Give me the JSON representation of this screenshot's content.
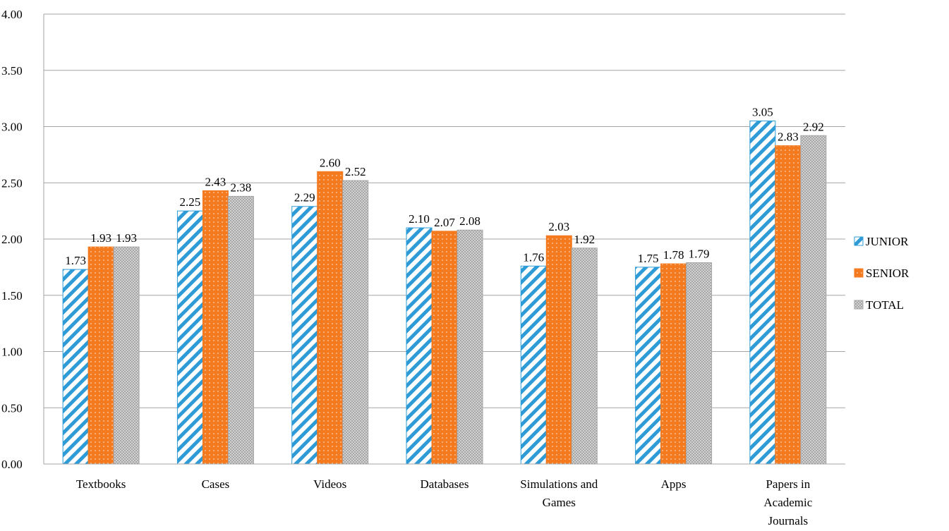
{
  "chart_data": {
    "type": "bar",
    "title": "",
    "xlabel": "",
    "ylabel": "",
    "ylim": [
      0,
      4
    ],
    "y_ticks": [
      "0.00",
      "0.50",
      "1.00",
      "1.50",
      "2.00",
      "2.50",
      "3.00",
      "3.50",
      "4.00"
    ],
    "grid": "horizontal",
    "legend_position": "right",
    "categories": [
      [
        "Textbooks"
      ],
      [
        "Cases"
      ],
      [
        "Videos"
      ],
      [
        "Databases"
      ],
      [
        "Simulations and",
        "Games"
      ],
      [
        "Apps"
      ],
      [
        "Papers in",
        "Academic",
        "Journals"
      ]
    ],
    "series": [
      {
        "name": "JUNIOR",
        "color": "#2E9BD6",
        "pattern": "diagonal-stripes",
        "values": [
          1.73,
          2.25,
          2.29,
          2.1,
          1.76,
          1.75,
          3.05
        ],
        "labels": [
          "1.73",
          "2.25",
          "2.29",
          "2.10",
          "1.76",
          "1.75",
          "3.05"
        ]
      },
      {
        "name": "SENIOR",
        "color": "#F47A20",
        "pattern": "dots",
        "values": [
          1.93,
          2.43,
          2.6,
          2.07,
          2.03,
          1.78,
          2.83
        ],
        "labels": [
          "1.93",
          "2.43",
          "2.60",
          "2.07",
          "2.03",
          "1.78",
          "2.83"
        ]
      },
      {
        "name": "TOTAL",
        "color": "#A6A6A6",
        "pattern": "checker",
        "values": [
          1.93,
          2.38,
          2.52,
          2.08,
          1.92,
          1.79,
          2.92
        ],
        "labels": [
          "1.93",
          "2.38",
          "2.52",
          "2.08",
          "1.92",
          "1.79",
          "2.92"
        ]
      }
    ]
  }
}
